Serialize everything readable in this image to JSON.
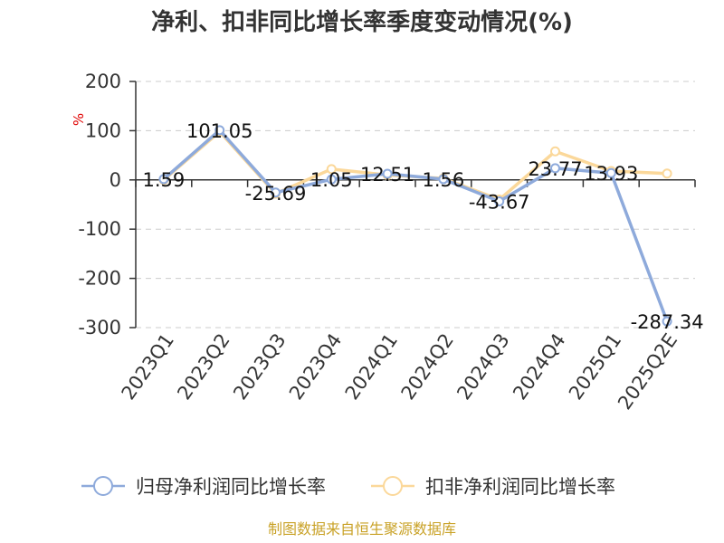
{
  "chart_data": {
    "type": "line",
    "title": "净利、扣非同比增长率季度变动情况(%)",
    "ylabel": "%",
    "categories": [
      "2023Q1",
      "2023Q2",
      "2023Q3",
      "2023Q4",
      "2024Q1",
      "2024Q2",
      "2024Q3",
      "2024Q4",
      "2025Q1",
      "2025Q2E"
    ],
    "yticks": [
      200,
      100,
      0,
      -100,
      -200,
      -300
    ],
    "ylim": [
      -300,
      200
    ],
    "grid": true,
    "legend_position": "bottom",
    "series": [
      {
        "name": "归母净利润同比增长率",
        "color": "#8eaadb",
        "values": [
          1.59,
          101.05,
          -25.69,
          1.05,
          12.51,
          1.56,
          -43.67,
          23.77,
          13.93,
          -287.34
        ],
        "labels": [
          "1.59",
          "101.05",
          "-25.69",
          "1.05",
          "12.51",
          "1.56",
          "-43.67",
          "23.77",
          "13.93",
          "-287.34"
        ]
      },
      {
        "name": "扣非净利润同比增长率",
        "color": "#fbd89a",
        "values": [
          0,
          98,
          -28,
          22,
          10,
          3,
          -40,
          58,
          18,
          13
        ],
        "labels": []
      }
    ]
  },
  "footer": {
    "source": "制图数据来自恒生聚源数据库"
  }
}
